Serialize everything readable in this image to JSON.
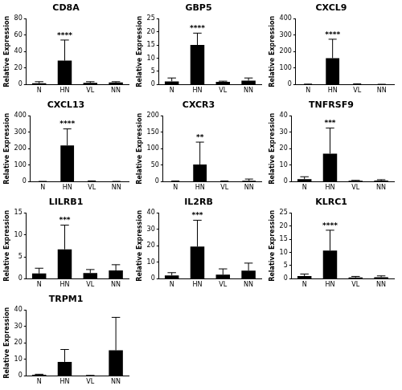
{
  "chart_data": [
    {
      "type": "bar",
      "title": "CD8A",
      "y_label": "Relative Expression",
      "categories": [
        "N",
        "HN",
        "VL",
        "NN"
      ],
      "values": [
        1.5,
        29,
        2,
        2.5
      ],
      "errors": [
        2,
        25,
        1.5,
        1
      ],
      "color": "#000000",
      "ylim": [
        0,
        80
      ],
      "yticks": [
        0,
        20,
        40,
        60,
        80
      ],
      "grid": false,
      "annotations": [
        {
          "category": "HN",
          "text": "****"
        }
      ]
    },
    {
      "type": "bar",
      "title": "GBP5",
      "y_label": "Relative Expression",
      "categories": [
        "N",
        "HN",
        "VL",
        "NN"
      ],
      "values": [
        1.2,
        15,
        1,
        1.5
      ],
      "errors": [
        1.3,
        4.5,
        0.3,
        1
      ],
      "color": "#000000",
      "ylim": [
        0,
        25
      ],
      "yticks": [
        0,
        5,
        10,
        15,
        20,
        25
      ],
      "grid": false,
      "annotations": [
        {
          "category": "HN",
          "text": "****"
        }
      ]
    },
    {
      "type": "bar",
      "title": "CXCL9",
      "y_label": "Relative Expression",
      "categories": [
        "N",
        "HN",
        "VL",
        "NN"
      ],
      "values": [
        1,
        160,
        2,
        1
      ],
      "errors": [
        2,
        115,
        3,
        1
      ],
      "color": "#000000",
      "ylim": [
        0,
        400
      ],
      "yticks": [
        0,
        100,
        200,
        300,
        400
      ],
      "grid": false,
      "annotations": [
        {
          "category": "HN",
          "text": "****"
        }
      ]
    },
    {
      "type": "bar",
      "title": "CXCL13",
      "y_label": "Relative Expression",
      "categories": [
        "N",
        "HN",
        "VL",
        "NN"
      ],
      "values": [
        1,
        220,
        2,
        1
      ],
      "errors": [
        1,
        100,
        3,
        1
      ],
      "color": "#000000",
      "ylim": [
        0,
        400
      ],
      "yticks": [
        0,
        100,
        200,
        300,
        400
      ],
      "grid": false,
      "annotations": [
        {
          "category": "HN",
          "text": "****"
        }
      ]
    },
    {
      "type": "bar",
      "title": "CXCR3",
      "y_label": "Relative Expression",
      "categories": [
        "N",
        "HN",
        "VL",
        "NN"
      ],
      "values": [
        1,
        52,
        1,
        3
      ],
      "errors": [
        1,
        68,
        1,
        5
      ],
      "color": "#000000",
      "ylim": [
        0,
        200
      ],
      "yticks": [
        0,
        50,
        100,
        150,
        200
      ],
      "grid": false,
      "annotations": [
        {
          "category": "HN",
          "text": "**"
        }
      ]
    },
    {
      "type": "bar",
      "title": "TNFRSF9",
      "y_label": "Relative Expression",
      "categories": [
        "N",
        "HN",
        "VL",
        "NN"
      ],
      "values": [
        1.5,
        17,
        0.5,
        0.7
      ],
      "errors": [
        1.5,
        15.5,
        0.3,
        0.5
      ],
      "color": "#000000",
      "ylim": [
        0,
        40
      ],
      "yticks": [
        0,
        10,
        20,
        30,
        40
      ],
      "grid": false,
      "annotations": [
        {
          "category": "HN",
          "text": "***"
        }
      ]
    },
    {
      "type": "bar",
      "title": "LILRB1",
      "y_label": "Relative Expression",
      "categories": [
        "N",
        "HN",
        "VL",
        "NN"
      ],
      "values": [
        1.2,
        6.7,
        1.3,
        1.9
      ],
      "errors": [
        1.2,
        5.5,
        0.8,
        1.3
      ],
      "color": "#000000",
      "ylim": [
        0,
        15
      ],
      "yticks": [
        0,
        5,
        10,
        15
      ],
      "grid": false,
      "annotations": [
        {
          "category": "HN",
          "text": "***"
        }
      ]
    },
    {
      "type": "bar",
      "title": "IL2RB",
      "y_label": "Relative Expression",
      "categories": [
        "N",
        "HN",
        "VL",
        "NN"
      ],
      "values": [
        2,
        19.5,
        2.5,
        5
      ],
      "errors": [
        1.7,
        16,
        3.5,
        4.5
      ],
      "color": "#000000",
      "ylim": [
        0,
        40
      ],
      "yticks": [
        0,
        10,
        20,
        30,
        40
      ],
      "grid": false,
      "annotations": [
        {
          "category": "HN",
          "text": "***"
        }
      ]
    },
    {
      "type": "bar",
      "title": "KLRC1",
      "y_label": "Relative Expression",
      "categories": [
        "N",
        "HN",
        "VL",
        "NN"
      ],
      "values": [
        1,
        10.7,
        0.5,
        0.6
      ],
      "errors": [
        0.8,
        7.7,
        0.4,
        0.5
      ],
      "color": "#000000",
      "ylim": [
        0,
        25
      ],
      "yticks": [
        0,
        5,
        10,
        15,
        20,
        25
      ],
      "grid": false,
      "annotations": [
        {
          "category": "HN",
          "text": "****"
        }
      ]
    },
    {
      "type": "bar",
      "title": "TRPM1",
      "y_label": "Relative Expression",
      "categories": [
        "N",
        "HN",
        "VL",
        "NN"
      ],
      "values": [
        0.7,
        8.5,
        0.2,
        15.5
      ],
      "errors": [
        0.3,
        7.5,
        0.1,
        20
      ],
      "color": "#000000",
      "ylim": [
        0,
        40
      ],
      "yticks": [
        0,
        10,
        20,
        30,
        40
      ],
      "grid": false
    }
  ]
}
